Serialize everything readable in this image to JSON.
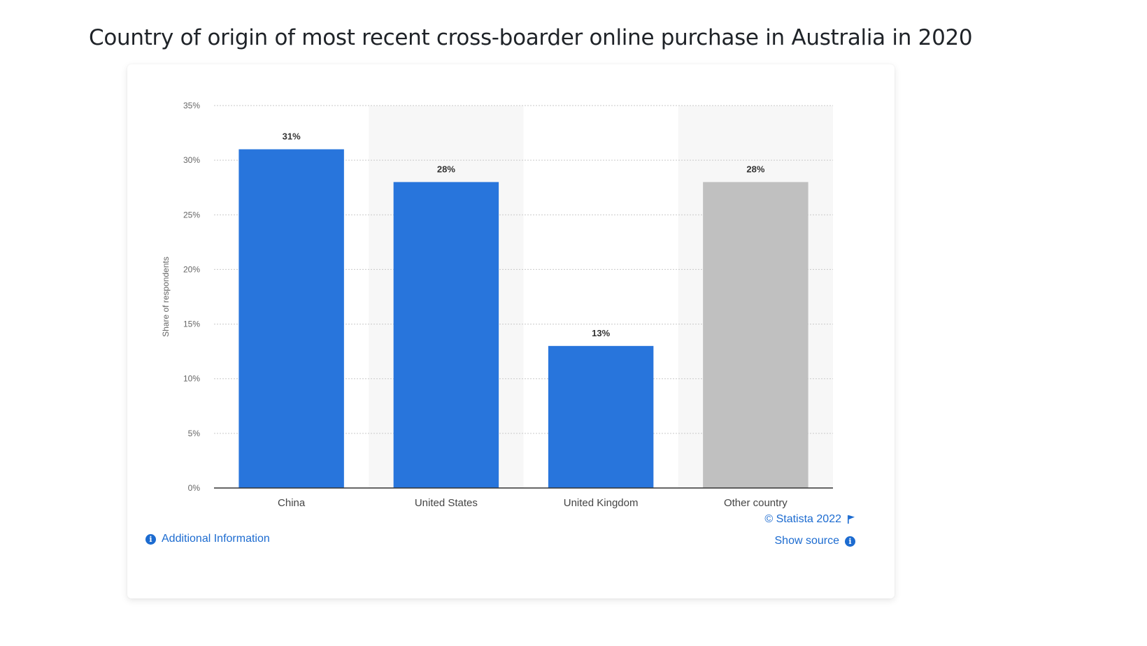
{
  "page": {
    "title": "Country of origin of most recent cross-boarder online purchase in Australia in 2020"
  },
  "footer": {
    "additional_info": "Additional Information",
    "copyright": "© Statista 2022",
    "show_source": "Show source"
  },
  "colors": {
    "primary_bar": "#2875dc",
    "other_bar": "#c0c0c0",
    "link": "#1c6bd0"
  },
  "chart_data": {
    "type": "bar",
    "categories": [
      "China",
      "United States",
      "United Kingdom",
      "Other country"
    ],
    "values": [
      31,
      28,
      13,
      28
    ],
    "value_labels": [
      "31%",
      "28%",
      "13%",
      "28%"
    ],
    "bar_colors": [
      "#2875dc",
      "#2875dc",
      "#2875dc",
      "#c0c0c0"
    ],
    "ylabel": "Share of respondents",
    "ylim": [
      0,
      35
    ],
    "yticks": [
      0,
      5,
      10,
      15,
      20,
      25,
      30,
      35
    ],
    "ytick_labels": [
      "0%",
      "5%",
      "10%",
      "15%",
      "20%",
      "25%",
      "30%",
      "35%"
    ],
    "grid": true
  }
}
